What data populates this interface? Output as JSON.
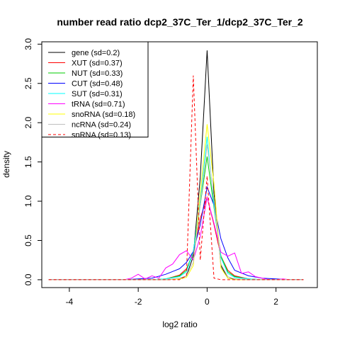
{
  "chart_data": {
    "type": "line",
    "title": "number read ratio dcp2_37C_Ter_1/dcp2_37C_Ter_2",
    "xlabel": "log2 ratio",
    "ylabel": "density",
    "xlim": [
      -4.8,
      3.2
    ],
    "ylim": [
      -0.1,
      3.03
    ],
    "x_ticks": [
      -4,
      -2,
      0,
      2
    ],
    "y_ticks": [
      0.0,
      0.5,
      1.0,
      1.5,
      2.0,
      2.5,
      3.0
    ],
    "x_tick_labels": [
      "-4",
      "-2",
      "0",
      "2"
    ],
    "y_tick_labels": [
      "0.0",
      "0.5",
      "1.0",
      "1.5",
      "2.0",
      "2.5",
      "3.0"
    ],
    "legend_position": "top-left",
    "series": [
      {
        "name": "gene (sd=0.2)",
        "color": "#000000",
        "dash": false,
        "x": [
          -4.6,
          -2.4,
          -2.0,
          -1.6,
          -1.2,
          -0.8,
          -0.6,
          -0.4,
          -0.2,
          0.0,
          0.2,
          0.4,
          0.6,
          0.8,
          1.2,
          1.6,
          2.0,
          2.4,
          2.8
        ],
        "y": [
          0,
          0,
          0,
          0,
          0,
          0.01,
          0.05,
          0.3,
          1.3,
          2.92,
          1.1,
          0.18,
          0.02,
          0.01,
          0,
          0,
          0,
          0,
          0
        ]
      },
      {
        "name": "XUT (sd=0.37)",
        "color": "#ff0000",
        "dash": false,
        "x": [
          -4.6,
          -2.4,
          -2.0,
          -1.6,
          -1.2,
          -0.8,
          -0.6,
          -0.4,
          -0.2,
          0.0,
          0.2,
          0.4,
          0.6,
          0.8,
          1.2,
          1.6,
          2.0,
          2.4,
          2.8
        ],
        "y": [
          0,
          0,
          0,
          0,
          0.01,
          0.06,
          0.14,
          0.33,
          0.78,
          1.05,
          0.7,
          0.3,
          0.12,
          0.05,
          0.01,
          0,
          0,
          0,
          0
        ]
      },
      {
        "name": "NUT (sd=0.33)",
        "color": "#00cc00",
        "dash": false,
        "x": [
          -4.6,
          -2.4,
          -2.0,
          -1.6,
          -1.2,
          -0.8,
          -0.6,
          -0.4,
          -0.2,
          0.0,
          0.2,
          0.4,
          0.6,
          0.8,
          1.2,
          1.6,
          2.0,
          2.4,
          2.8
        ],
        "y": [
          0,
          0,
          0,
          0,
          0.01,
          0.05,
          0.12,
          0.36,
          0.95,
          1.57,
          0.92,
          0.3,
          0.1,
          0.04,
          0.01,
          0,
          0,
          0,
          0
        ]
      },
      {
        "name": "CUT (sd=0.48)",
        "color": "#0000ff",
        "dash": false,
        "x": [
          -4.6,
          -2.4,
          -2.0,
          -1.6,
          -1.2,
          -0.8,
          -0.6,
          -0.4,
          -0.2,
          0.0,
          0.2,
          0.4,
          0.6,
          0.8,
          1.2,
          1.6,
          2.0,
          2.4,
          2.8
        ],
        "y": [
          0,
          0,
          0.01,
          0.02,
          0.07,
          0.14,
          0.22,
          0.36,
          0.7,
          1.18,
          0.95,
          0.52,
          0.28,
          0.12,
          0.05,
          0.02,
          0.01,
          0,
          0
        ]
      },
      {
        "name": "SUT (sd=0.31)",
        "color": "#00ffff",
        "dash": false,
        "x": [
          -4.6,
          -2.4,
          -2.0,
          -1.6,
          -1.2,
          -0.8,
          -0.6,
          -0.4,
          -0.2,
          0.0,
          0.2,
          0.4,
          0.6,
          0.8,
          1.2,
          1.6,
          2.0,
          2.4,
          2.8
        ],
        "y": [
          0,
          0,
          0,
          0,
          0.01,
          0.04,
          0.1,
          0.35,
          1.0,
          1.82,
          0.95,
          0.28,
          0.08,
          0.03,
          0.01,
          0,
          0,
          0,
          0
        ]
      },
      {
        "name": "tRNA (sd=0.71)",
        "color": "#ff00ff",
        "dash": false,
        "x": [
          -4.6,
          -2.4,
          -2.2,
          -2.0,
          -1.8,
          -1.6,
          -1.4,
          -1.2,
          -1.0,
          -0.8,
          -0.6,
          -0.4,
          -0.2,
          0.0,
          0.2,
          0.4,
          0.6,
          0.8,
          1.0,
          1.2,
          1.4,
          1.6,
          1.8,
          2.0,
          2.2,
          2.4,
          2.8
        ],
        "y": [
          0,
          0,
          0.02,
          0.07,
          0.01,
          0.05,
          0.02,
          0.15,
          0.2,
          0.32,
          0.37,
          0.25,
          0.55,
          1.05,
          0.72,
          0.35,
          0.3,
          0.34,
          0.08,
          0.1,
          0.04,
          0.02,
          0.0,
          0.0,
          0.01,
          0,
          0
        ]
      },
      {
        "name": "snoRNA (sd=0.18)",
        "color": "#ffff00",
        "dash": false,
        "x": [
          -4.6,
          -2.4,
          -2.0,
          -1.6,
          -1.2,
          -0.8,
          -0.6,
          -0.4,
          -0.2,
          0.0,
          0.2,
          0.4,
          0.6,
          0.8,
          1.2,
          1.6,
          2.0,
          2.4,
          2.8
        ],
        "y": [
          0,
          0,
          0,
          0,
          0,
          0.01,
          0.03,
          0.18,
          1.1,
          1.98,
          1.22,
          0.15,
          0.02,
          0,
          0,
          0,
          0,
          0,
          0
        ]
      },
      {
        "name": "ncRNA (sd=0.24)",
        "color": "#bebebe",
        "dash": false,
        "x": [
          -4.6,
          -2.4,
          -2.0,
          -1.6,
          -1.2,
          -0.8,
          -0.6,
          -0.4,
          -0.2,
          0.0,
          0.2,
          0.4,
          0.6,
          0.8,
          1.2,
          1.6,
          2.0,
          2.4,
          2.8
        ],
        "y": [
          0,
          0,
          0,
          0,
          0,
          0.02,
          0.05,
          0.22,
          0.95,
          1.72,
          1.02,
          0.2,
          0.04,
          0.01,
          0,
          0,
          0,
          0,
          0
        ]
      },
      {
        "name": "snRNA (sd=0.13)",
        "color": "#ff0000",
        "dash": true,
        "x": [
          -4.6,
          -2.4,
          -2.0,
          -1.6,
          -1.2,
          -0.8,
          -0.6,
          -0.4,
          -0.2,
          0.0,
          0.2,
          0.4,
          0.6,
          0.8,
          1.2,
          1.6,
          2.0,
          2.4,
          2.8
        ],
        "y": [
          0,
          0,
          0,
          0,
          0,
          0,
          0.05,
          2.6,
          0.25,
          1.32,
          0.02,
          0,
          0,
          0,
          0,
          0,
          0,
          0,
          0
        ]
      }
    ]
  }
}
